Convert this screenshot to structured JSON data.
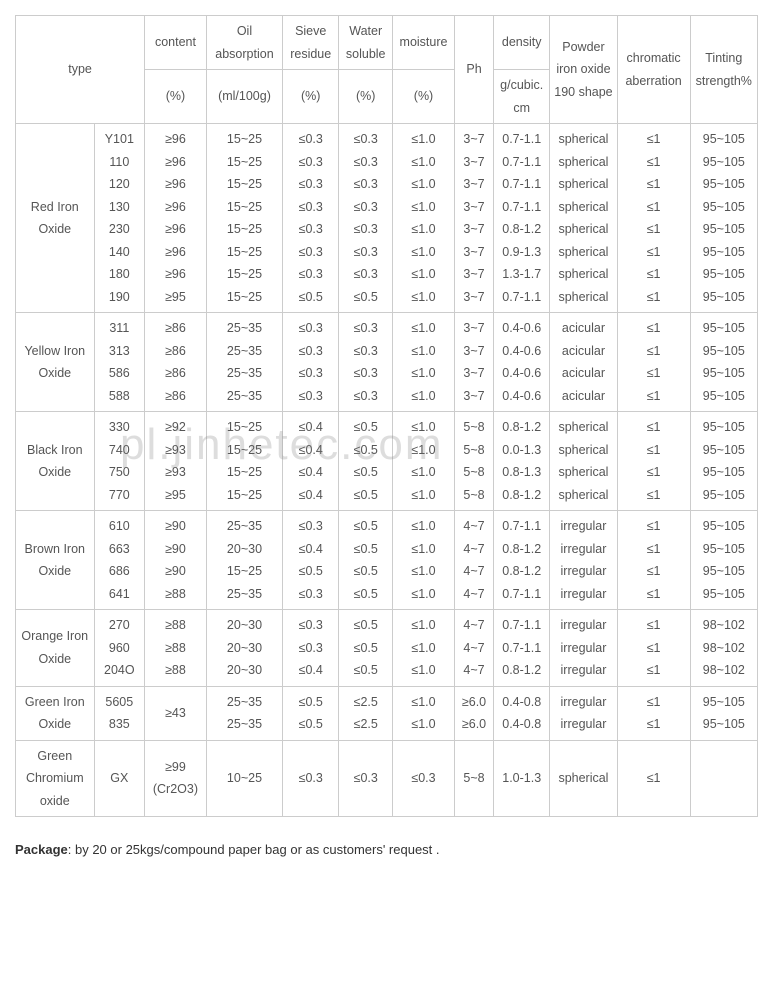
{
  "headers": {
    "type": "type",
    "content": "content",
    "content_unit": "(%)",
    "oil": "Oil absorption",
    "oil_unit": "(ml/100g)",
    "sieve": "Sieve residue",
    "sieve_unit": "(%)",
    "water": "Water soluble",
    "water_unit": "(%)",
    "moisture": "moisture",
    "moisture_unit": "(%)",
    "ph": "Ph",
    "density": "density",
    "density_unit": "g/cubic. cm",
    "shape": "Powder iron oxide 190 shape",
    "chrom": "chromatic aberration",
    "tint": "Tinting strength%"
  },
  "groups": [
    {
      "name": "Red Iron Oxide",
      "rows": [
        {
          "type": "Y101",
          "content": "≥96",
          "oil": "15~25",
          "sieve": "≤0.3",
          "water": "≤0.3",
          "moist": "≤1.0",
          "ph": "3~7",
          "dens": "0.7-1.1",
          "shape": "spherical",
          "chrom": "≤1",
          "tint": "95~105"
        },
        {
          "type": "110",
          "content": "≥96",
          "oil": "15~25",
          "sieve": "≤0.3",
          "water": "≤0.3",
          "moist": "≤1.0",
          "ph": "3~7",
          "dens": "0.7-1.1",
          "shape": "spherical",
          "chrom": "≤1",
          "tint": "95~105"
        },
        {
          "type": "120",
          "content": "≥96",
          "oil": "15~25",
          "sieve": "≤0.3",
          "water": "≤0.3",
          "moist": "≤1.0",
          "ph": "3~7",
          "dens": "0.7-1.1",
          "shape": "spherical",
          "chrom": "≤1",
          "tint": "95~105"
        },
        {
          "type": "130",
          "content": "≥96",
          "oil": "15~25",
          "sieve": "≤0.3",
          "water": "≤0.3",
          "moist": "≤1.0",
          "ph": "3~7",
          "dens": "0.7-1.1",
          "shape": "spherical",
          "chrom": "≤1",
          "tint": "95~105"
        },
        {
          "type": "230",
          "content": "≥96",
          "oil": "15~25",
          "sieve": "≤0.3",
          "water": "≤0.3",
          "moist": "≤1.0",
          "ph": "3~7",
          "dens": "0.8-1.2",
          "shape": "spherical",
          "chrom": "≤1",
          "tint": "95~105"
        },
        {
          "type": "140",
          "content": "≥96",
          "oil": "15~25",
          "sieve": "≤0.3",
          "water": "≤0.3",
          "moist": "≤1.0",
          "ph": "3~7",
          "dens": "0.9-1.3",
          "shape": "spherical",
          "chrom": "≤1",
          "tint": "95~105"
        },
        {
          "type": "180",
          "content": "≥96",
          "oil": "15~25",
          "sieve": "≤0.3",
          "water": "≤0.3",
          "moist": "≤1.0",
          "ph": "3~7",
          "dens": "1.3-1.7",
          "shape": "spherical",
          "chrom": "≤1",
          "tint": "95~105"
        },
        {
          "type": "190",
          "content": "≥95",
          "oil": "15~25",
          "sieve": "≤0.5",
          "water": "≤0.5",
          "moist": "≤1.0",
          "ph": "3~7",
          "dens": "0.7-1.1",
          "shape": "spherical",
          "chrom": "≤1",
          "tint": "95~105"
        }
      ]
    },
    {
      "name": "Yellow Iron Oxide",
      "rows": [
        {
          "type": "311",
          "content": "≥86",
          "oil": "25~35",
          "sieve": "≤0.3",
          "water": "≤0.3",
          "moist": "≤1.0",
          "ph": "3~7",
          "dens": "0.4-0.6",
          "shape": "acicular",
          "chrom": "≤1",
          "tint": "95~105"
        },
        {
          "type": "313",
          "content": "≥86",
          "oil": "25~35",
          "sieve": "≤0.3",
          "water": "≤0.3",
          "moist": "≤1.0",
          "ph": "3~7",
          "dens": "0.4-0.6",
          "shape": "acicular",
          "chrom": "≤1",
          "tint": "95~105"
        },
        {
          "type": "586",
          "content": "≥86",
          "oil": "25~35",
          "sieve": "≤0.3",
          "water": "≤0.3",
          "moist": "≤1.0",
          "ph": "3~7",
          "dens": "0.4-0.6",
          "shape": "acicular",
          "chrom": "≤1",
          "tint": "95~105"
        },
        {
          "type": "588",
          "content": "≥86",
          "oil": "25~35",
          "sieve": "≤0.3",
          "water": "≤0.3",
          "moist": "≤1.0",
          "ph": "3~7",
          "dens": "0.4-0.6",
          "shape": "acicular",
          "chrom": "≤1",
          "tint": "95~105"
        }
      ]
    },
    {
      "name": "Black Iron Oxide",
      "rows": [
        {
          "type": "330",
          "content": "≥92",
          "oil": "15~25",
          "sieve": "≤0.4",
          "water": "≤0.5",
          "moist": "≤1.0",
          "ph": "5~8",
          "dens": "0.8-1.2",
          "shape": "spherical",
          "chrom": "≤1",
          "tint": "95~105"
        },
        {
          "type": "740",
          "content": "≥93",
          "oil": "15~25",
          "sieve": "≤0.4",
          "water": "≤0.5",
          "moist": "≤1.0",
          "ph": "5~8",
          "dens": "0.0-1.3",
          "shape": "spherical",
          "chrom": "≤1",
          "tint": "95~105"
        },
        {
          "type": "750",
          "content": "≥93",
          "oil": "15~25",
          "sieve": "≤0.4",
          "water": "≤0.5",
          "moist": "≤1.0",
          "ph": "5~8",
          "dens": "0.8-1.3",
          "shape": "spherical",
          "chrom": "≤1",
          "tint": "95~105"
        },
        {
          "type": "770",
          "content": "≥95",
          "oil": "15~25",
          "sieve": "≤0.4",
          "water": "≤0.5",
          "moist": "≤1.0",
          "ph": "5~8",
          "dens": "0.8-1.2",
          "shape": "spherical",
          "chrom": "≤1",
          "tint": "95~105"
        }
      ]
    },
    {
      "name": "Brown Iron Oxide",
      "rows": [
        {
          "type": "610",
          "content": "≥90",
          "oil": "25~35",
          "sieve": "≤0.3",
          "water": "≤0.5",
          "moist": "≤1.0",
          "ph": "4~7",
          "dens": "0.7-1.1",
          "shape": "irregular",
          "chrom": "≤1",
          "tint": "95~105"
        },
        {
          "type": "663",
          "content": "≥90",
          "oil": "20~30",
          "sieve": "≤0.4",
          "water": "≤0.5",
          "moist": "≤1.0",
          "ph": "4~7",
          "dens": "0.8-1.2",
          "shape": "irregular",
          "chrom": "≤1",
          "tint": "95~105"
        },
        {
          "type": "686",
          "content": "≥90",
          "oil": "15~25",
          "sieve": "≤0.5",
          "water": "≤0.5",
          "moist": "≤1.0",
          "ph": "4~7",
          "dens": "0.8-1.2",
          "shape": "irregular",
          "chrom": "≤1",
          "tint": "95~105"
        },
        {
          "type": "641",
          "content": "≥88",
          "oil": "25~35",
          "sieve": "≤0.3",
          "water": "≤0.5",
          "moist": "≤1.0",
          "ph": "4~7",
          "dens": "0.7-1.1",
          "shape": "irregular",
          "chrom": "≤1",
          "tint": "95~105"
        }
      ]
    },
    {
      "name": "Orange Iron Oxide",
      "rows": [
        {
          "type": "270",
          "content": "≥88",
          "oil": "20~30",
          "sieve": "≤0.3",
          "water": "≤0.5",
          "moist": "≤1.0",
          "ph": "4~7",
          "dens": "0.7-1.1",
          "shape": "irregular",
          "chrom": "≤1",
          "tint": "98~102"
        },
        {
          "type": "960",
          "content": "≥88",
          "oil": "20~30",
          "sieve": "≤0.3",
          "water": "≤0.5",
          "moist": "≤1.0",
          "ph": "4~7",
          "dens": "0.7-1.1",
          "shape": "irregular",
          "chrom": "≤1",
          "tint": "98~102"
        },
        {
          "type": "204O",
          "content": "≥88",
          "oil": "20~30",
          "sieve": "≤0.4",
          "water": "≤0.5",
          "moist": "≤1.0",
          "ph": "4~7",
          "dens": "0.8-1.2",
          "shape": "irregular",
          "chrom": "≤1",
          "tint": "98~102"
        }
      ]
    },
    {
      "name": "Green Iron Oxide",
      "rows_merged_content": "≥43",
      "rows": [
        {
          "type": "5605",
          "oil": "25~35",
          "sieve": "≤0.5",
          "water": "≤2.5",
          "moist": "≤1.0",
          "ph": "≥6.0",
          "dens": "0.4-0.8",
          "shape": "irregular",
          "chrom": "≤1",
          "tint": "95~105"
        },
        {
          "type": "835",
          "oil": "25~35",
          "sieve": "≤0.5",
          "water": "≤2.5",
          "moist": "≤1.0",
          "ph": "≥6.0",
          "dens": "0.4-0.8",
          "shape": "irregular",
          "chrom": "≤1",
          "tint": "95~105"
        }
      ]
    },
    {
      "name": "Green Chromium oxide",
      "rows": [
        {
          "type": "GX",
          "content": "≥99 (Cr2O3)",
          "oil": "10~25",
          "sieve": "≤0.3",
          "water": "≤0.3",
          "moist": "≤0.3",
          "ph": "5~8",
          "dens": "1.0-1.3",
          "shape": "spherical",
          "chrom": "≤1",
          "tint": ""
        }
      ]
    }
  ],
  "package_label": "Package",
  "package_text": ": by 20 or 25kgs/compound paper bag  or as customers' request .",
  "watermark": "pl.jinhetec.com"
}
